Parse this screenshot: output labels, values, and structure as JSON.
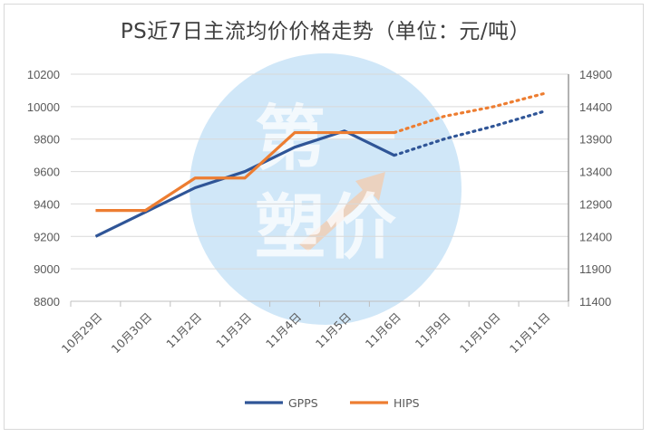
{
  "colors": {
    "gpps": "#2f5597",
    "hips": "#ed7d31",
    "grid": "#d9d9d9",
    "axis": "#bfbfbf",
    "watermark": "#a9d4f2"
  },
  "watermark": {
    "text_top": "第一",
    "text_bottom": "塑价"
  },
  "chart_data": {
    "type": "line",
    "title": "PS近7日主流均价价格走势（单位：元/吨）",
    "categories": [
      "10月29日",
      "10月30日",
      "11月2日",
      "11月3日",
      "11月4日",
      "11月5日",
      "11月6日",
      "11月9日",
      "11月10日",
      "11月11日"
    ],
    "y_left": {
      "min": 8800,
      "max": 10200,
      "step": 200,
      "ticks": [
        8800,
        9000,
        9200,
        9400,
        9600,
        9800,
        10000,
        10200
      ]
    },
    "y_right": {
      "min": 11400,
      "max": 14900,
      "step": 500,
      "ticks": [
        11400,
        11900,
        12400,
        12900,
        13400,
        13900,
        14400,
        14900
      ]
    },
    "series": [
      {
        "name": "GPPS",
        "axis": "left",
        "values": [
          9200,
          9350,
          9500,
          9600,
          9750,
          9850,
          9700,
          null,
          null,
          null
        ],
        "forecast": {
          "from_index": 6,
          "values": [
            9700,
            9800,
            9880,
            9970
          ]
        }
      },
      {
        "name": "HIPS",
        "axis": "left",
        "values": [
          9360,
          9360,
          9560,
          9560,
          9840,
          9840,
          9840,
          null,
          null,
          null
        ],
        "forecast": {
          "from_index": 6,
          "values": [
            9840,
            9940,
            10000,
            10080
          ]
        }
      }
    ],
    "legend": [
      "GPPS",
      "HIPS"
    ],
    "legend_position": "bottom",
    "grid": true
  }
}
